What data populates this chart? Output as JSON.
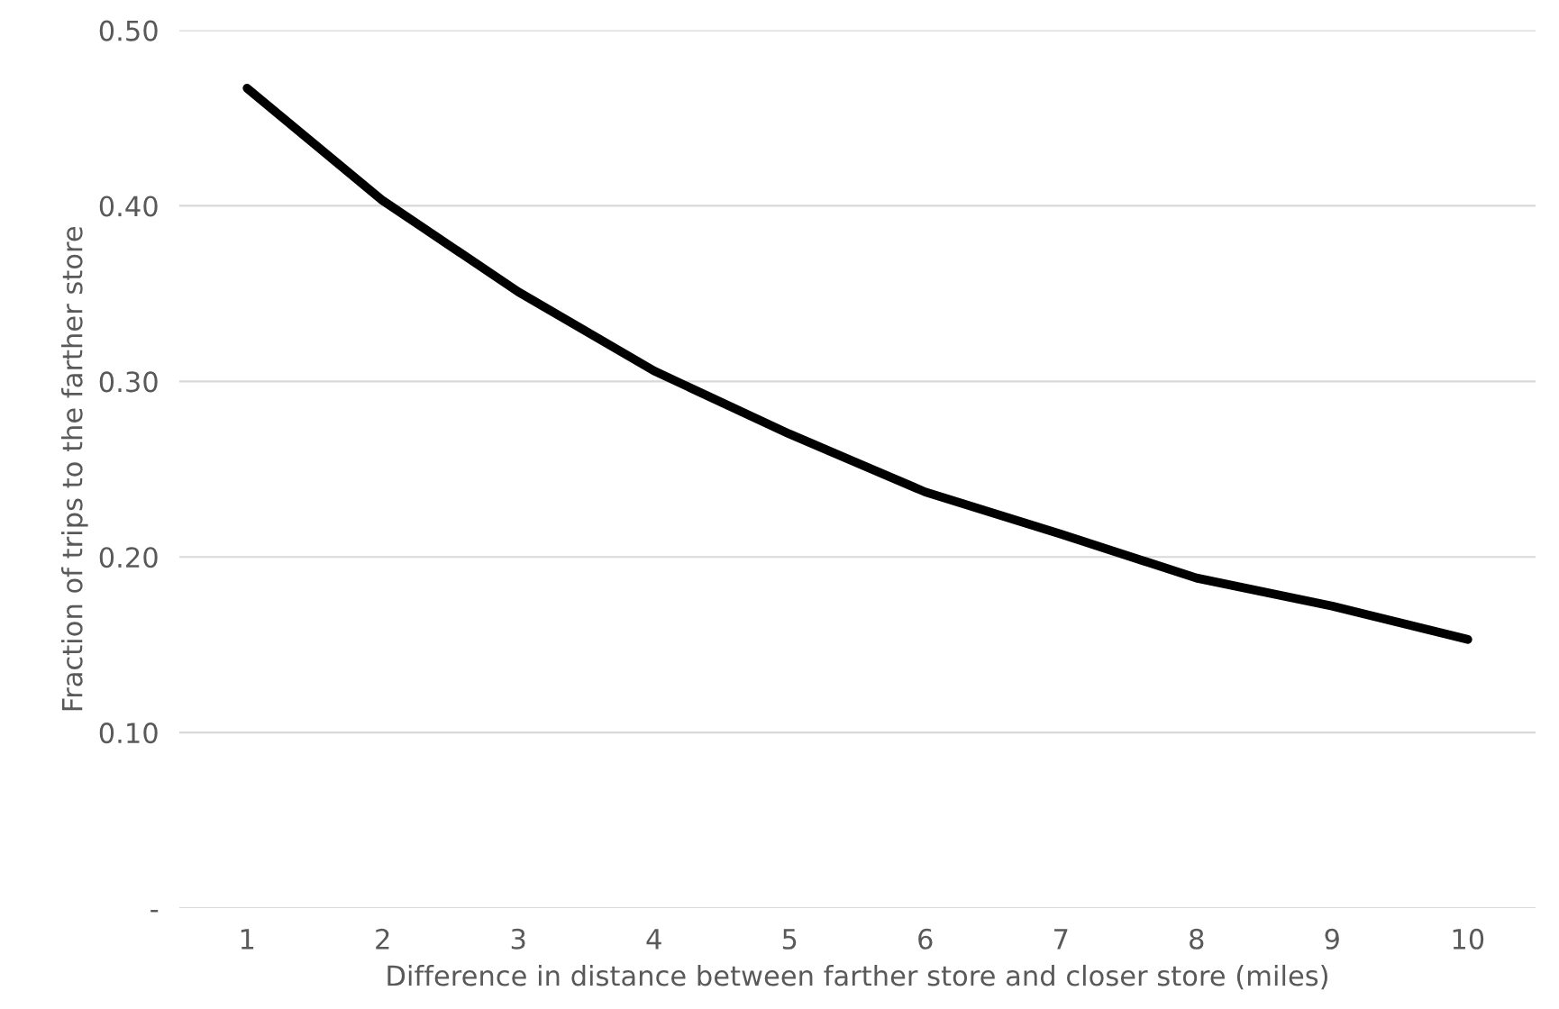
{
  "chart_data": {
    "type": "line",
    "xlabel": "Difference in distance between farther store and closer store (miles)",
    "ylabel": "Fraction of trips to the farther store",
    "categories": [
      "1",
      "2",
      "3",
      "4",
      "5",
      "6",
      "7",
      "8",
      "9",
      "10"
    ],
    "series": [
      {
        "color": "#000000",
        "values": [
          0.467,
          0.403,
          0.351,
          0.306,
          0.27,
          0.237,
          0.213,
          0.188,
          0.172,
          0.153
        ]
      }
    ],
    "ylim": [
      0,
      0.5
    ],
    "yticks": [
      {
        "value": 0,
        "label": "-"
      },
      {
        "value": 0.1,
        "label": "0.10"
      },
      {
        "value": 0.2,
        "label": "0.20"
      },
      {
        "value": 0.3,
        "label": "0.30"
      },
      {
        "value": 0.4,
        "label": "0.40"
      },
      {
        "value": 0.5,
        "label": "0.50"
      }
    ],
    "grid": "y",
    "legend": false,
    "marker": "none",
    "line_style": "solid"
  }
}
